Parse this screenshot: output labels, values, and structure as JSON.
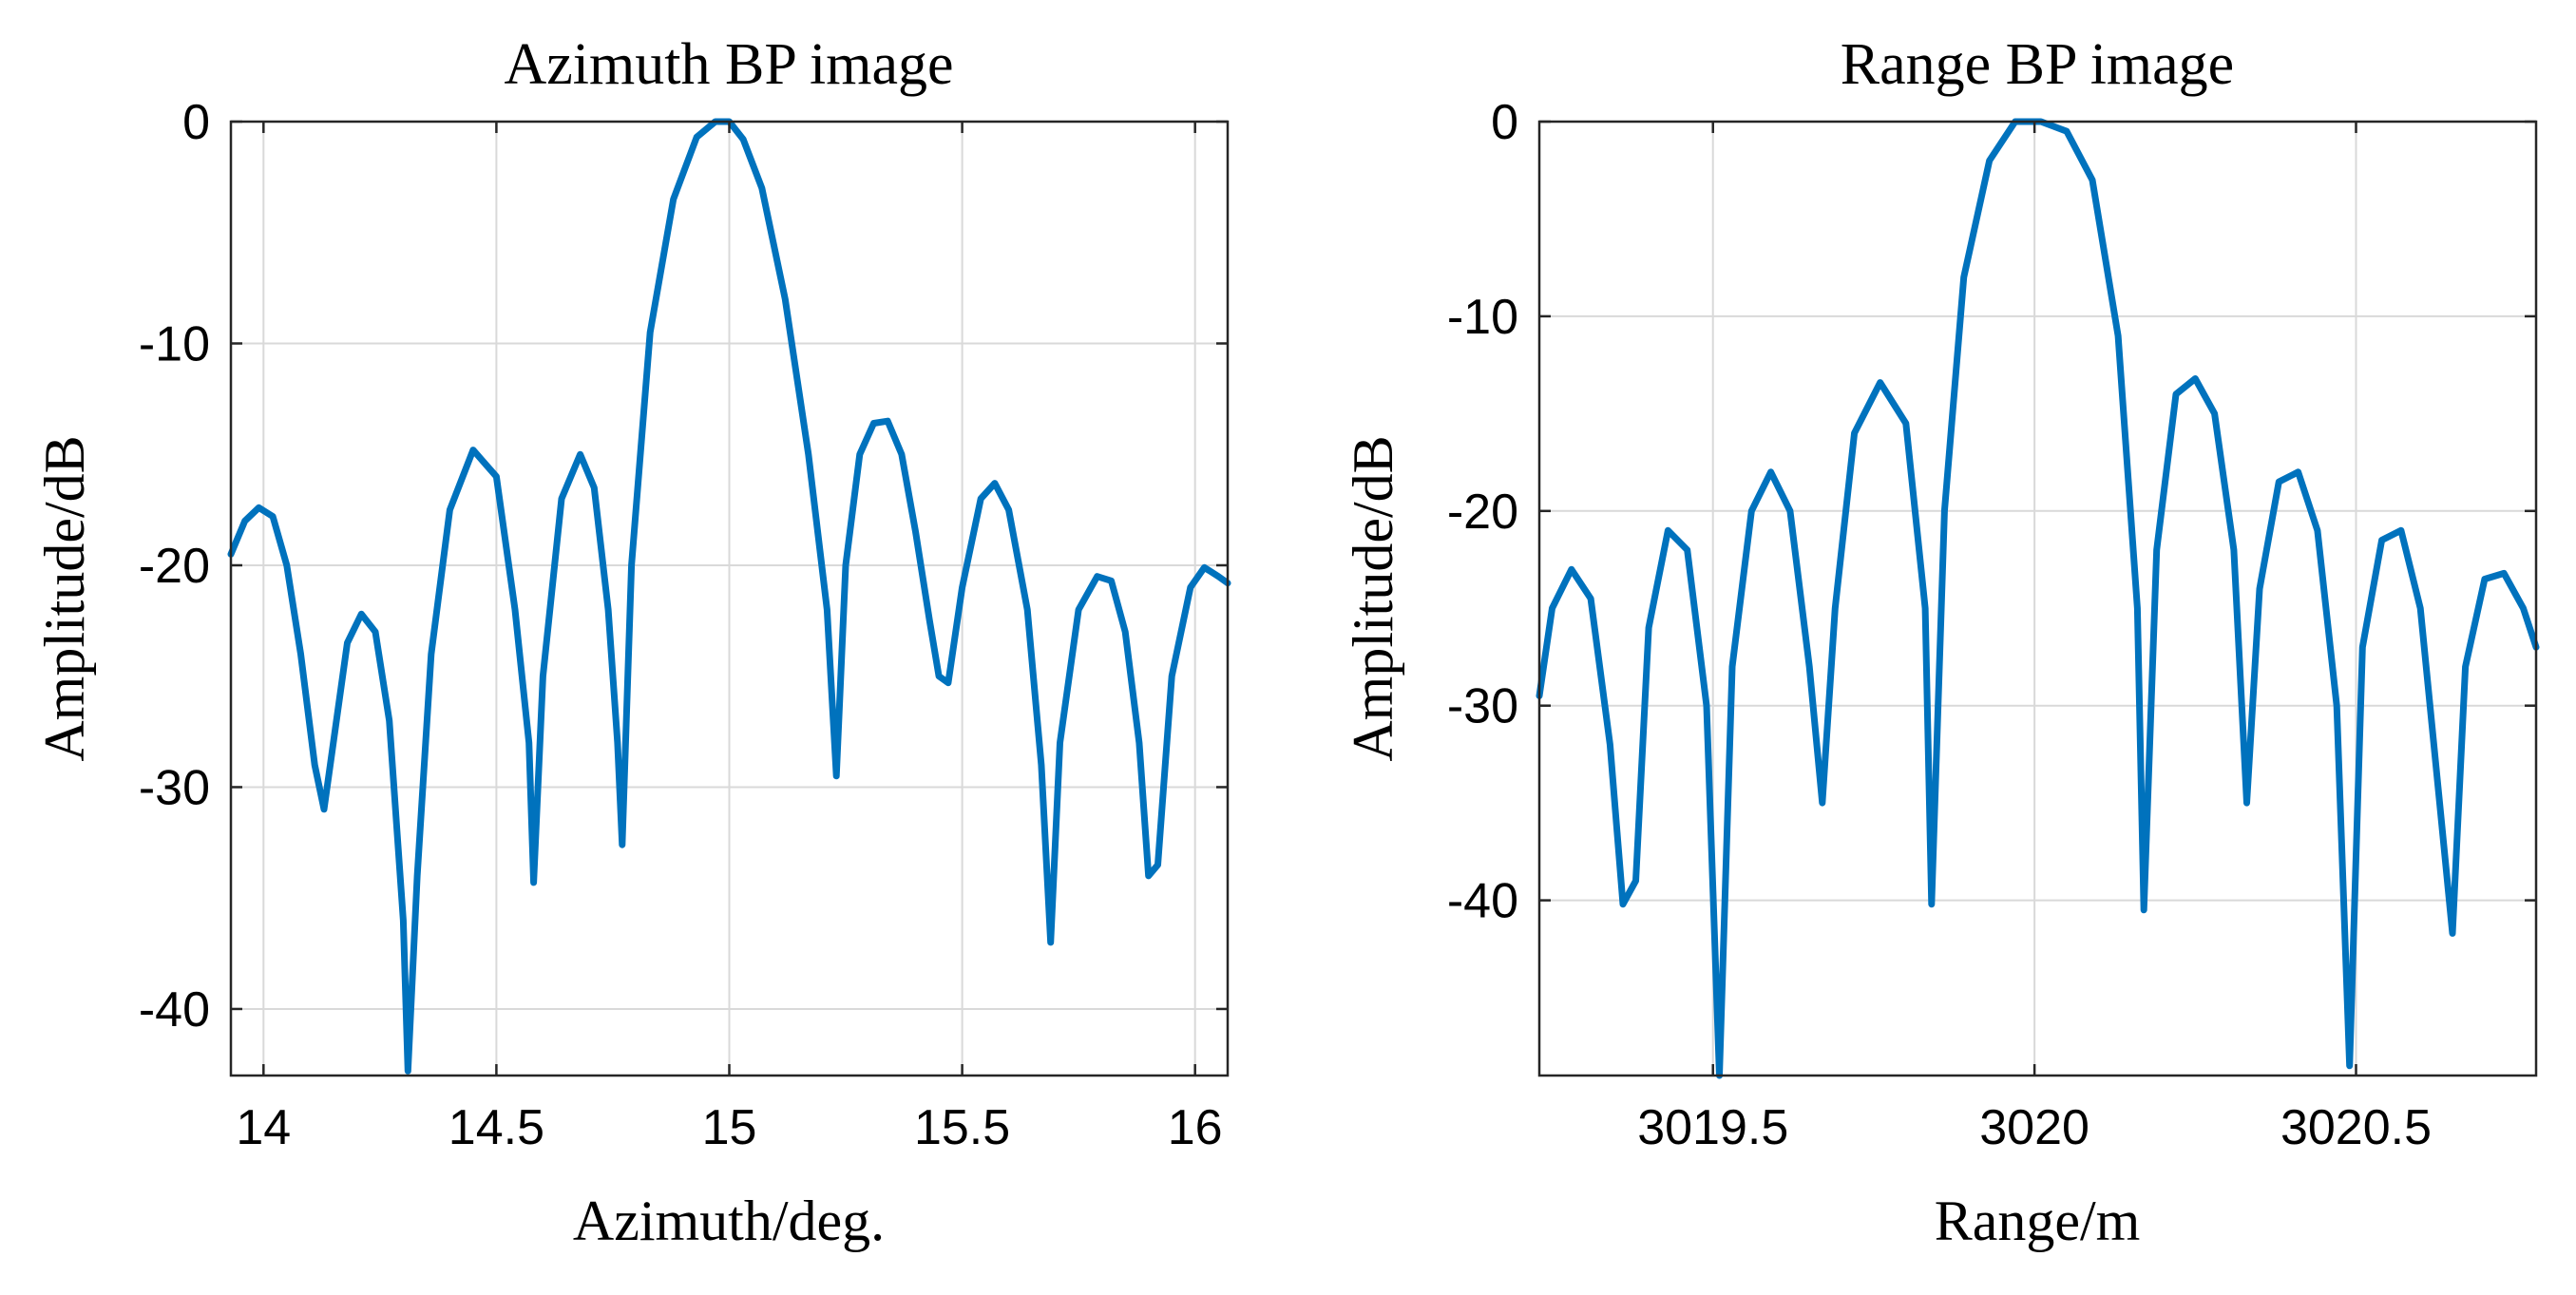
{
  "chart_data": [
    {
      "type": "line",
      "title": "Azimuth BP image",
      "xlabel": "Azimuth/deg.",
      "ylabel": "Amplitude/dB",
      "xlim": [
        13.93,
        16.07
      ],
      "ylim": [
        -43,
        0
      ],
      "grid": true,
      "xticks": [
        14,
        14.5,
        15,
        15.5,
        16
      ],
      "xtick_labels": [
        "14",
        "14.5",
        "15",
        "15.5",
        "16"
      ],
      "yticks": [
        0,
        -10,
        -20,
        -30,
        -40
      ],
      "ytick_labels": [
        "0",
        "-10",
        "-20",
        "-30",
        "-40"
      ],
      "series": [
        {
          "name": "Azimuth BP",
          "color": "#0072BD",
          "x": [
            13.93,
            13.96,
            13.99,
            14.02,
            14.05,
            14.08,
            14.11,
            14.13,
            14.15,
            14.18,
            14.21,
            14.24,
            14.27,
            14.3,
            14.31,
            14.33,
            14.36,
            14.4,
            14.45,
            14.5,
            14.54,
            14.57,
            14.58,
            14.6,
            14.64,
            14.68,
            14.71,
            14.74,
            14.76,
            14.77,
            14.79,
            14.83,
            14.88,
            14.93,
            14.97,
            15.0,
            15.03,
            15.07,
            15.12,
            15.17,
            15.21,
            15.23,
            15.25,
            15.28,
            15.31,
            15.34,
            15.37,
            15.4,
            15.43,
            15.45,
            15.47,
            15.5,
            15.54,
            15.57,
            15.6,
            15.64,
            15.67,
            15.69,
            15.71,
            15.75,
            15.79,
            15.82,
            15.85,
            15.88,
            15.9,
            15.92,
            15.95,
            15.99,
            16.02,
            16.05,
            16.07
          ],
          "y": [
            -19.5,
            -18.0,
            -17.4,
            -17.8,
            -20.0,
            -24.0,
            -29.0,
            -31.0,
            -28.0,
            -23.5,
            -22.2,
            -23.0,
            -27.0,
            -36.0,
            -42.8,
            -34.0,
            -24.0,
            -17.5,
            -14.8,
            -16.0,
            -22.0,
            -28.0,
            -34.3,
            -25.0,
            -17.0,
            -15.0,
            -16.5,
            -22.0,
            -28.0,
            -32.6,
            -20.0,
            -9.5,
            -3.5,
            -0.7,
            0.0,
            0.0,
            -0.8,
            -3.0,
            -8.0,
            -15.0,
            -22.0,
            -29.5,
            -20.0,
            -15.0,
            -13.6,
            -13.5,
            -15.0,
            -18.5,
            -22.5,
            -25.0,
            -25.3,
            -21.0,
            -17.0,
            -16.3,
            -17.5,
            -22.0,
            -29.0,
            -37.0,
            -28.0,
            -22.0,
            -20.5,
            -20.7,
            -23.0,
            -28.0,
            -34.0,
            -33.5,
            -25.0,
            -21.0,
            -20.1,
            -20.5,
            -20.8
          ]
        }
      ]
    },
    {
      "type": "line",
      "title": "Range BP image",
      "xlabel": "Range/m",
      "ylabel": "Amplitude/dB",
      "xlim": [
        3019.23,
        3020.78
      ],
      "ylim": [
        -49,
        0
      ],
      "grid": true,
      "xticks": [
        3019.5,
        3020,
        3020.5
      ],
      "xtick_labels": [
        "3019.5",
        "3020",
        "3020.5"
      ],
      "yticks": [
        0,
        -10,
        -20,
        -30,
        -40
      ],
      "ytick_labels": [
        "0",
        "-10",
        "-20",
        "-30",
        "-40"
      ],
      "series": [
        {
          "name": "Range BP",
          "color": "#0072BD",
          "x": [
            3019.23,
            3019.25,
            3019.28,
            3019.31,
            3019.34,
            3019.36,
            3019.38,
            3019.4,
            3019.43,
            3019.46,
            3019.49,
            3019.51,
            3019.53,
            3019.56,
            3019.59,
            3019.62,
            3019.65,
            3019.67,
            3019.69,
            3019.72,
            3019.76,
            3019.8,
            3019.83,
            3019.84,
            3019.86,
            3019.89,
            3019.93,
            3019.97,
            3020.01,
            3020.05,
            3020.09,
            3020.13,
            3020.16,
            3020.17,
            3020.19,
            3020.22,
            3020.25,
            3020.28,
            3020.31,
            3020.33,
            3020.35,
            3020.38,
            3020.41,
            3020.44,
            3020.47,
            3020.49,
            3020.51,
            3020.54,
            3020.57,
            3020.6,
            3020.63,
            3020.65,
            3020.67,
            3020.7,
            3020.73,
            3020.76,
            3020.78
          ],
          "y": [
            -29.5,
            -25.0,
            -23.0,
            -24.5,
            -32.0,
            -40.2,
            -39.0,
            -26.0,
            -21.0,
            -22.0,
            -30.0,
            -49.0,
            -28.0,
            -20.0,
            -18.0,
            -20.0,
            -28.0,
            -35.0,
            -25.0,
            -16.0,
            -13.4,
            -15.5,
            -25.0,
            -40.2,
            -20.0,
            -8.0,
            -2.0,
            0.0,
            0.0,
            -0.5,
            -3.0,
            -11.0,
            -25.0,
            -40.5,
            -22.0,
            -14.0,
            -13.2,
            -15.0,
            -22.0,
            -35.0,
            -24.0,
            -18.5,
            -18.0,
            -21.0,
            -30.0,
            -48.5,
            -27.0,
            -21.5,
            -21.0,
            -25.0,
            -35.0,
            -41.7,
            -28.0,
            -23.5,
            -23.2,
            -25.0,
            -27.0
          ]
        }
      ]
    }
  ]
}
